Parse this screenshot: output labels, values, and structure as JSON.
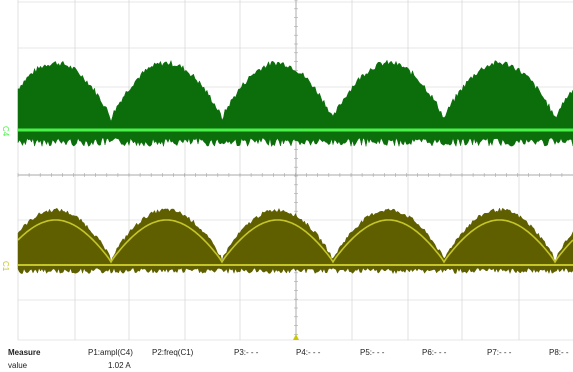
{
  "channels": {
    "c4": {
      "marker": "C4",
      "color": "#0b6e0b",
      "ref_color": "#49f249"
    },
    "c1": {
      "marker": "C1",
      "color": "#5f5f00",
      "ref_color": "#c5c52a"
    }
  },
  "trigger_marker_color": "#c8c800",
  "measure": {
    "header_label": "Measure",
    "value_label": "value",
    "params": [
      {
        "label": "P1:ampl(C4)",
        "value": "1.02 A"
      },
      {
        "label": "P2:freq(C1)",
        "value": ""
      },
      {
        "label": "P3:- - -",
        "value": ""
      },
      {
        "label": "P4:- - -",
        "value": ""
      },
      {
        "label": "P5:- - -",
        "value": ""
      },
      {
        "label": "P6:- - -",
        "value": ""
      },
      {
        "label": "P7:- - -",
        "value": ""
      },
      {
        "label": "P8:- -",
        "value": ""
      }
    ]
  }
}
